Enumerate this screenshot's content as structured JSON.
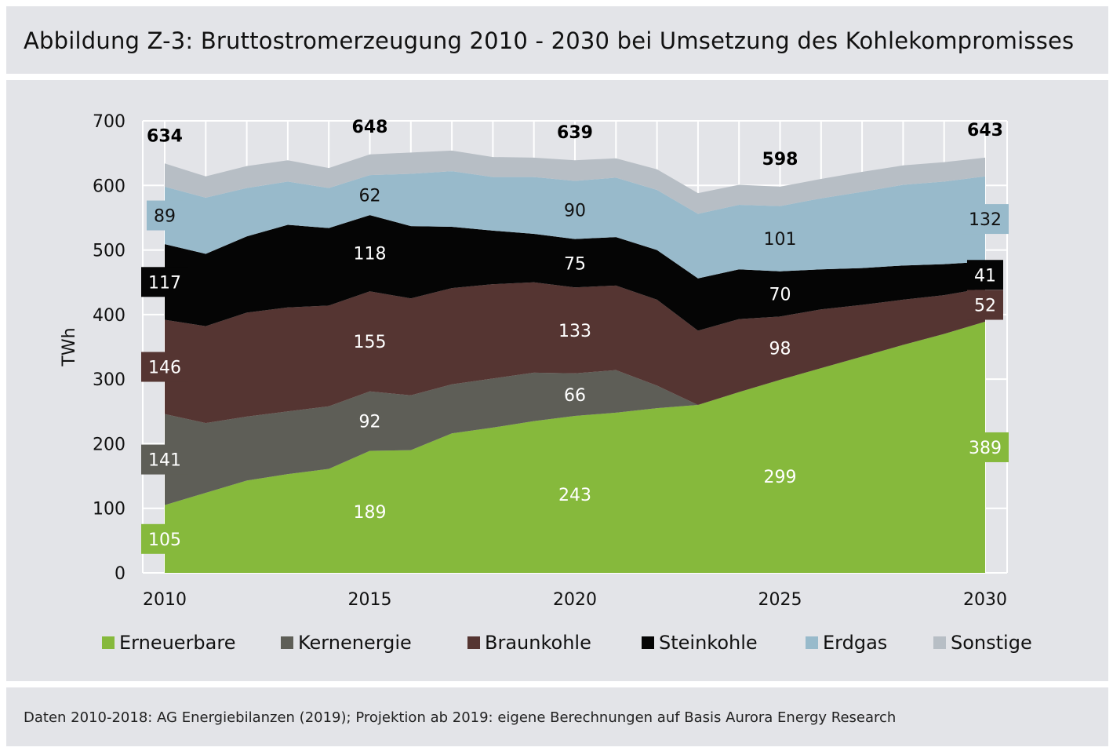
{
  "title": "Abbildung Z-3: Bruttostromerzeugung 2010 - 2030 bei Umsetzung des Kohlekompromisses",
  "footer": "Daten 2010-2018: AG Energiebilanzen (2019); Projektion ab 2019: eigene Berechnungen auf Basis Aurora Energy Research",
  "chart_data": {
    "type": "area",
    "stacked": true,
    "ylabel": "TWh",
    "ylim": [
      0,
      700
    ],
    "yticks": [
      0,
      100,
      200,
      300,
      400,
      500,
      600,
      700
    ],
    "xticks": [
      2010,
      2015,
      2020,
      2025,
      2030
    ],
    "grid": true,
    "legend_position": "bottom",
    "x": [
      2010,
      2011,
      2012,
      2013,
      2014,
      2015,
      2016,
      2017,
      2018,
      2019,
      2020,
      2021,
      2022,
      2023,
      2024,
      2025,
      2026,
      2027,
      2028,
      2029,
      2030
    ],
    "series": [
      {
        "name": "Erneuerbare",
        "color": "#86b93c",
        "values": [
          105,
          124,
          143,
          153,
          161,
          189,
          190,
          216,
          225,
          235,
          243,
          248,
          255,
          260,
          280,
          299,
          317,
          335,
          353,
          370,
          389
        ]
      },
      {
        "name": "Kernenergie",
        "color": "#5e5e57",
        "values": [
          141,
          108,
          99,
          97,
          97,
          92,
          85,
          76,
          76,
          75,
          66,
          66,
          35,
          0,
          0,
          0,
          0,
          0,
          0,
          0,
          0
        ]
      },
      {
        "name": "Braunkohle",
        "color": "#553532",
        "values": [
          146,
          150,
          161,
          161,
          156,
          155,
          150,
          149,
          146,
          140,
          133,
          131,
          133,
          115,
          113,
          98,
          91,
          80,
          70,
          60,
          52
        ]
      },
      {
        "name": "Steinkohle",
        "color": "#050505",
        "values": [
          117,
          112,
          118,
          128,
          120,
          118,
          112,
          95,
          83,
          75,
          75,
          75,
          77,
          81,
          77,
          70,
          62,
          57,
          53,
          48,
          41
        ]
      },
      {
        "name": "Erdgas",
        "color": "#98bacb",
        "values": [
          89,
          87,
          75,
          67,
          62,
          62,
          81,
          86,
          83,
          88,
          90,
          92,
          93,
          100,
          100,
          101,
          110,
          118,
          125,
          128,
          132
        ]
      },
      {
        "name": "Sonstige",
        "color": "#b7bec5",
        "values": [
          36,
          33,
          34,
          33,
          31,
          32,
          33,
          32,
          31,
          30,
          32,
          30,
          32,
          32,
          31,
          30,
          30,
          31,
          30,
          30,
          29
        ]
      }
    ],
    "totals": [
      {
        "year": 2010,
        "value": "634"
      },
      {
        "year": 2015,
        "value": "648"
      },
      {
        "year": 2020,
        "value": "639"
      },
      {
        "year": 2025,
        "value": "598"
      },
      {
        "year": 2030,
        "value": "643"
      }
    ],
    "data_labels": [
      {
        "year": 2010,
        "series": "Erneuerbare",
        "text": "105",
        "boxed": true
      },
      {
        "year": 2010,
        "series": "Kernenergie",
        "text": "141",
        "boxed": true
      },
      {
        "year": 2010,
        "series": "Braunkohle",
        "text": "146",
        "boxed": true
      },
      {
        "year": 2010,
        "series": "Steinkohle",
        "text": "117",
        "boxed": true
      },
      {
        "year": 2010,
        "series": "Erdgas",
        "text": "89",
        "boxed": true
      },
      {
        "year": 2015,
        "series": "Erneuerbare",
        "text": "189",
        "boxed": false
      },
      {
        "year": 2015,
        "series": "Kernenergie",
        "text": "92",
        "boxed": false
      },
      {
        "year": 2015,
        "series": "Braunkohle",
        "text": "155",
        "boxed": false
      },
      {
        "year": 2015,
        "series": "Steinkohle",
        "text": "118",
        "boxed": false
      },
      {
        "year": 2015,
        "series": "Erdgas",
        "text": "62",
        "boxed": false
      },
      {
        "year": 2020,
        "series": "Erneuerbare",
        "text": "243",
        "boxed": false
      },
      {
        "year": 2020,
        "series": "Kernenergie",
        "text": "66",
        "boxed": false
      },
      {
        "year": 2020,
        "series": "Braunkohle",
        "text": "133",
        "boxed": false
      },
      {
        "year": 2020,
        "series": "Steinkohle",
        "text": "75",
        "boxed": false
      },
      {
        "year": 2020,
        "series": "Erdgas",
        "text": "90",
        "boxed": false
      },
      {
        "year": 2025,
        "series": "Erneuerbare",
        "text": "299",
        "boxed": false
      },
      {
        "year": 2025,
        "series": "Braunkohle",
        "text": "98",
        "boxed": false
      },
      {
        "year": 2025,
        "series": "Steinkohle",
        "text": "70",
        "boxed": false
      },
      {
        "year": 2025,
        "series": "Erdgas",
        "text": "101",
        "boxed": false
      },
      {
        "year": 2030,
        "series": "Erneuerbare",
        "text": "389",
        "boxed": true
      },
      {
        "year": 2030,
        "series": "Braunkohle",
        "text": "52",
        "boxed": true
      },
      {
        "year": 2030,
        "series": "Steinkohle",
        "text": "41",
        "boxed": true
      },
      {
        "year": 2030,
        "series": "Erdgas",
        "text": "132",
        "boxed": true
      }
    ]
  }
}
